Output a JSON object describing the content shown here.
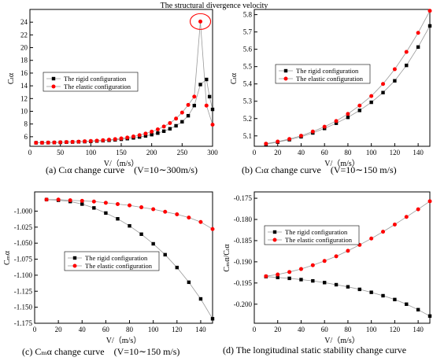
{
  "colors": {
    "rigid": "#000000",
    "elastic": "#ff0000",
    "axis": "#000000",
    "connector": "#999999"
  },
  "charts": [
    {
      "caption": "(a) Cₗα change curve　(V=10∼300m/s)",
      "annotation": "The structural divergence velocity"
    },
    {
      "caption": "(b) Cₗα change curve　(V=10∼150 m/s)"
    },
    {
      "caption": "(c) Cₘα change curve　(V=10∼150 m/s)"
    },
    {
      "caption": "(d) The longitudinal static stability change curve"
    }
  ],
  "chart_data": [
    {
      "type": "line",
      "ylabel": "Cₗα",
      "xlabel": "V/（m/s）",
      "xlim": [
        0,
        300
      ],
      "ylim": [
        4.5,
        26
      ],
      "xticks": [
        0,
        50,
        100,
        150,
        200,
        250,
        300
      ],
      "yticks": [
        6,
        8,
        10,
        12,
        14,
        16,
        18,
        20,
        22,
        24
      ],
      "legend_position": "middle-left",
      "annotation": "The structural divergence velocity",
      "annotation_target": [
        280,
        24.1
      ],
      "series": [
        {
          "name": "The rigid configuration",
          "color": "#000000",
          "marker": "square",
          "x": [
            10,
            20,
            30,
            40,
            50,
            60,
            70,
            80,
            90,
            100,
            110,
            120,
            130,
            140,
            150,
            160,
            170,
            180,
            190,
            200,
            210,
            220,
            230,
            240,
            250,
            260,
            270,
            280,
            290,
            295,
            300
          ],
          "y": [
            5.05,
            5.06,
            5.07,
            5.09,
            5.11,
            5.14,
            5.17,
            5.2,
            5.23,
            5.27,
            5.32,
            5.38,
            5.44,
            5.51,
            5.6,
            5.7,
            5.82,
            5.96,
            6.13,
            6.33,
            6.57,
            6.87,
            7.25,
            7.72,
            8.35,
            9.3,
            10.9,
            14.2,
            15.0,
            12.3,
            10.3
          ]
        },
        {
          "name": "The elastic configuration",
          "color": "#ff0000",
          "marker": "circle",
          "x": [
            10,
            20,
            30,
            40,
            50,
            60,
            70,
            80,
            90,
            100,
            110,
            120,
            130,
            140,
            150,
            160,
            170,
            180,
            190,
            200,
            210,
            220,
            230,
            240,
            250,
            260,
            270,
            280,
            290,
            300
          ],
          "y": [
            5.05,
            5.06,
            5.08,
            5.1,
            5.13,
            5.16,
            5.19,
            5.23,
            5.28,
            5.33,
            5.38,
            5.45,
            5.53,
            5.62,
            5.74,
            5.88,
            6.05,
            6.25,
            6.5,
            6.8,
            7.15,
            7.6,
            8.15,
            8.85,
            9.8,
            11.0,
            12.3,
            24.1,
            10.9,
            7.9
          ]
        }
      ]
    },
    {
      "type": "line",
      "ylabel": "Cₗα",
      "xlabel": "V/（m/s）",
      "xlim": [
        0,
        150
      ],
      "ylim": [
        5.04,
        5.83
      ],
      "xticks": [
        0,
        20,
        40,
        60,
        80,
        100,
        120,
        140
      ],
      "yticks": [
        5.1,
        5.2,
        5.3,
        5.4,
        5.5,
        5.6,
        5.7,
        5.8
      ],
      "legend_position": "upper-left",
      "series": [
        {
          "name": "The rigid configuration",
          "color": "#000000",
          "marker": "square",
          "x": [
            10,
            20,
            30,
            40,
            50,
            60,
            70,
            80,
            90,
            100,
            110,
            120,
            130,
            140,
            150
          ],
          "y": [
            5.052,
            5.064,
            5.078,
            5.095,
            5.117,
            5.143,
            5.173,
            5.207,
            5.247,
            5.294,
            5.35,
            5.418,
            5.507,
            5.613,
            5.735
          ]
        },
        {
          "name": "The elastic configuration",
          "color": "#ff0000",
          "marker": "circle",
          "x": [
            10,
            20,
            30,
            40,
            50,
            60,
            70,
            80,
            90,
            100,
            110,
            120,
            130,
            140,
            150
          ],
          "y": [
            5.055,
            5.067,
            5.082,
            5.101,
            5.125,
            5.153,
            5.186,
            5.227,
            5.275,
            5.33,
            5.4,
            5.485,
            5.585,
            5.695,
            5.822
          ]
        }
      ]
    },
    {
      "type": "line",
      "ylabel": "Cₘα",
      "xlabel": "V/（m/s）",
      "xlim": [
        0,
        150
      ],
      "ylim": [
        -1.175,
        -0.97
      ],
      "xticks": [
        0,
        20,
        40,
        60,
        80,
        100,
        120,
        140
      ],
      "yticks": [
        -1.0,
        -1.025,
        -1.05,
        -1.075,
        -1.1,
        -1.125,
        -1.15,
        -1.175
      ],
      "legend_position": "middle-left",
      "series": [
        {
          "name": "The rigid configuration",
          "color": "#000000",
          "marker": "square",
          "x": [
            10,
            20,
            30,
            40,
            50,
            60,
            70,
            80,
            90,
            100,
            110,
            120,
            130,
            140,
            150
          ],
          "y": [
            -0.982,
            -0.983,
            -0.985,
            -0.989,
            -0.995,
            -1.003,
            -1.012,
            -1.023,
            -1.036,
            -1.051,
            -1.068,
            -1.088,
            -1.111,
            -1.137,
            -1.168
          ]
        },
        {
          "name": "The elastic configuration",
          "color": "#ff0000",
          "marker": "circle",
          "x": [
            10,
            20,
            30,
            40,
            50,
            60,
            70,
            80,
            90,
            100,
            110,
            120,
            130,
            140,
            150
          ],
          "y": [
            -0.982,
            -0.982,
            -0.983,
            -0.984,
            -0.985,
            -0.987,
            -0.989,
            -0.991,
            -0.994,
            -0.997,
            -1.001,
            -1.005,
            -1.01,
            -1.017,
            -1.028
          ]
        }
      ]
    },
    {
      "type": "line",
      "ylabel": "Cₘα/Cₗα",
      "xlabel": "V/（m/s）",
      "xlim": [
        0,
        150
      ],
      "ylim": [
        -0.2045,
        -0.1735
      ],
      "xticks": [
        0,
        20,
        40,
        60,
        80,
        100,
        120,
        140
      ],
      "yticks": [
        -0.175,
        -0.18,
        -0.185,
        -0.19,
        -0.195,
        -0.2
      ],
      "legend_position": "upper-left",
      "series": [
        {
          "name": "The rigid configuration",
          "color": "#000000",
          "marker": "square",
          "x": [
            10,
            20,
            30,
            40,
            50,
            60,
            70,
            80,
            90,
            100,
            110,
            120,
            130,
            140,
            150
          ],
          "y": [
            -0.1935,
            -0.1937,
            -0.1939,
            -0.1942,
            -0.1945,
            -0.1949,
            -0.1954,
            -0.1959,
            -0.1965,
            -0.1972,
            -0.198,
            -0.1989,
            -0.2,
            -0.2013,
            -0.2028
          ]
        },
        {
          "name": "The elastic configuration",
          "color": "#ff0000",
          "marker": "circle",
          "x": [
            10,
            20,
            30,
            40,
            50,
            60,
            70,
            80,
            90,
            100,
            110,
            120,
            130,
            140,
            150
          ],
          "y": [
            -0.1934,
            -0.193,
            -0.1924,
            -0.1917,
            -0.1908,
            -0.1898,
            -0.1887,
            -0.1874,
            -0.186,
            -0.1845,
            -0.1829,
            -0.1812,
            -0.1794,
            -0.1776,
            -0.1757
          ]
        }
      ]
    }
  ]
}
